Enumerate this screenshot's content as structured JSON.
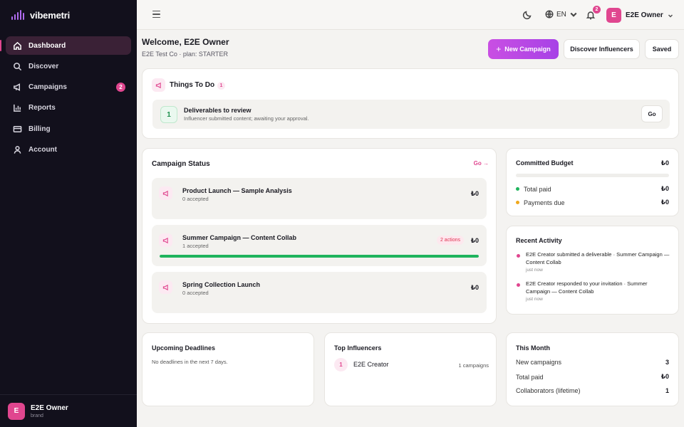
{
  "app": {
    "name": "vibemetri"
  },
  "sidebar": {
    "items": [
      {
        "label": "Dashboard",
        "icon": "home-icon",
        "active": true
      },
      {
        "label": "Discover",
        "icon": "search-icon"
      },
      {
        "label": "Campaigns",
        "icon": "megaphone-icon",
        "badge": "2"
      },
      {
        "label": "Reports",
        "icon": "bar-chart-icon"
      },
      {
        "label": "Billing",
        "icon": "credit-card-icon"
      },
      {
        "label": "Account",
        "icon": "user-icon"
      }
    ],
    "user": {
      "initial": "E",
      "name": "E2E Owner",
      "role": "brand"
    }
  },
  "topbar": {
    "language": "EN",
    "notifications_count": "2",
    "user": {
      "initial": "E",
      "name": "E2E Owner"
    }
  },
  "header": {
    "welcome": "Welcome, E2E Owner",
    "subline": "E2E Test Co · plan: STARTER",
    "new_campaign": "New Campaign",
    "discover": "Discover Influencers",
    "saved": "Saved"
  },
  "todo": {
    "title": "Things To Do",
    "count": "1",
    "item": {
      "number": "1",
      "title": "Deliverables to review",
      "description": "Influencer submitted content; awaiting your approval.",
      "go": "Go"
    }
  },
  "campaign_status": {
    "title": "Campaign Status",
    "go_link": "Go →",
    "campaigns": [
      {
        "name": "Product Launch — Sample Analysis",
        "accepted": "0 accepted",
        "amount": "₺0"
      },
      {
        "name": "Summer Campaign — Content Collab",
        "accepted": "1 accepted",
        "amount": "₺0",
        "actions": "2 actions",
        "progress": 1.0
      },
      {
        "name": "Spring Collection Launch",
        "accepted": "0 accepted",
        "amount": "₺0"
      }
    ]
  },
  "budget": {
    "title": "Committed Budget",
    "total": "₺0",
    "rows": [
      {
        "label": "Total paid",
        "value": "₺0",
        "color": "#1fb45d"
      },
      {
        "label": "Payments due",
        "value": "₺0",
        "color": "#f0a81c"
      }
    ]
  },
  "activity": {
    "title": "Recent Activity",
    "items": [
      {
        "text": "E2E Creator submitted a deliverable · Summer Campaign — Content Collab",
        "time": "just now"
      },
      {
        "text": "E2E Creator responded to your invitation · Summer Campaign — Content Collab",
        "time": "just now"
      }
    ]
  },
  "deadlines": {
    "title": "Upcoming Deadlines",
    "empty": "No deadlines in the next 7 days."
  },
  "influencers": {
    "title": "Top Influencers",
    "items": [
      {
        "rank": "1",
        "name": "E2E Creator",
        "campaigns": "1 campaigns"
      }
    ]
  },
  "month": {
    "title": "This Month",
    "rows": [
      {
        "label": "New campaigns",
        "value": "3"
      },
      {
        "label": "Total paid",
        "value": "₺0"
      },
      {
        "label": "Collaborators (lifetime)",
        "value": "1"
      }
    ]
  },
  "colors": {
    "accent": "#e0468f",
    "primary_button": "#b848e4",
    "sidebar_bg": "#12101c",
    "progress": "#1fb45d"
  }
}
